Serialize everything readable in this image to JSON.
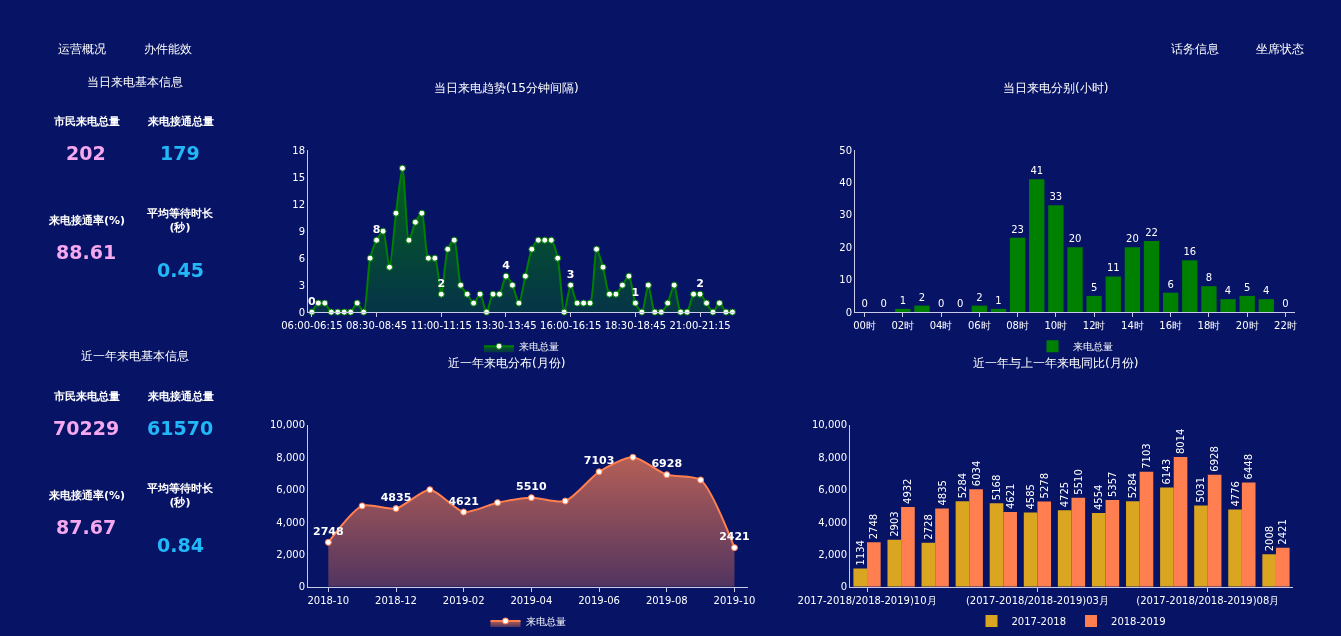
{
  "chart_data": [
    {
      "type": "other",
      "annotations": [
        "运营概况",
        "办件能效",
        "话务信息",
        "坐席状态"
      ]
    },
    {
      "type": "other",
      "title": "当日来电基本信息",
      "annotations": [
        "市民来电总量",
        "202",
        "来电接通总量",
        "179",
        "来电接通率(%)",
        "88.61",
        "平均等待时长(秒)",
        "0.45"
      ]
    },
    {
      "type": "area",
      "title": "当日来电趋势(15分钟间隔)",
      "categories": [
        "06:00-06:15",
        null,
        null,
        null,
        null,
        null,
        null,
        null,
        null,
        null,
        "08:30-08:45",
        null,
        null,
        null,
        null,
        null,
        null,
        null,
        null,
        null,
        "11:00-11:15",
        null,
        null,
        null,
        null,
        null,
        null,
        null,
        null,
        null,
        "13:30-13:45",
        null,
        null,
        null,
        null,
        null,
        null,
        null,
        null,
        null,
        "16:00-16:15",
        null,
        null,
        null,
        null,
        null,
        null,
        null,
        null,
        null,
        "18:30-18:45",
        null,
        null,
        null,
        null,
        null,
        null,
        null,
        null,
        null,
        "21:00-21:15",
        null,
        null,
        null,
        null,
        null
      ],
      "series": [
        {
          "name": "来电总量",
          "color": "#008000",
          "values": [
            0,
            1,
            1,
            0,
            0,
            0,
            0,
            1,
            0,
            6,
            8,
            9,
            5,
            11,
            16,
            8,
            10,
            11,
            6,
            6,
            2,
            7,
            8,
            3,
            2,
            1,
            2,
            0,
            2,
            2,
            4,
            3,
            1,
            4,
            7,
            8,
            8,
            8,
            6,
            0,
            3,
            1,
            1,
            1,
            7,
            5,
            2,
            2,
            3,
            4,
            1,
            0,
            3,
            0,
            0,
            1,
            3,
            0,
            0,
            2,
            2,
            1,
            0,
            1,
            0,
            0
          ],
          "value_labels": [
            "0",
            null,
            null,
            null,
            null,
            null,
            null,
            null,
            null,
            null,
            "8",
            null,
            null,
            null,
            null,
            null,
            null,
            null,
            null,
            null,
            "2",
            null,
            null,
            null,
            null,
            null,
            null,
            null,
            null,
            null,
            "4",
            null,
            null,
            null,
            null,
            null,
            null,
            null,
            null,
            null,
            "3",
            null,
            null,
            null,
            null,
            null,
            null,
            null,
            null,
            null,
            "1",
            null,
            null,
            null,
            null,
            null,
            null,
            null,
            null,
            null,
            "2",
            null,
            null,
            null,
            null,
            null
          ]
        }
      ],
      "ylim": [
        0,
        18
      ],
      "yticks": [
        0,
        3,
        6,
        9,
        12,
        15,
        18
      ],
      "legend": "bottom",
      "marker": "circle"
    },
    {
      "type": "bar",
      "title": "当日来电分别(小时)",
      "categories": [
        "00时",
        null,
        "02时",
        null,
        "04时",
        null,
        "06时",
        null,
        "08时",
        null,
        "10时",
        null,
        "12时",
        null,
        "14时",
        null,
        "16时",
        null,
        "18时",
        null,
        "20时",
        null,
        "22时"
      ],
      "series": [
        {
          "name": "来电总量",
          "color": "#008000",
          "values": [
            0,
            0,
            1,
            2,
            0,
            0,
            2,
            1,
            23,
            41,
            33,
            20,
            5,
            11,
            20,
            22,
            6,
            16,
            8,
            4,
            5,
            4,
            0
          ]
        }
      ],
      "ylim": [
        0,
        50
      ],
      "yticks": [
        0,
        10,
        20,
        30,
        40,
        50
      ],
      "data_labels": true,
      "legend": "bottom"
    },
    {
      "type": "other",
      "title": "近一年来电基本信息",
      "annotations": [
        "市民来电总量",
        "70229",
        "来电接通总量",
        "61570",
        "来电接通率(%)",
        "87.67",
        "平均等待时长(秒)",
        "0.84"
      ]
    },
    {
      "type": "area",
      "title": "近一年来电分布(月份)",
      "categories": [
        "2018-10",
        null,
        "2018-12",
        null,
        "2019-02",
        null,
        "2019-04",
        null,
        "2019-06",
        null,
        "2019-08",
        null,
        "2019-10"
      ],
      "series": [
        {
          "name": "来电总量",
          "color": "#ff7f50",
          "values": [
            2748,
            5000,
            4835,
            6000,
            4621,
            5200,
            5510,
            5300,
            7103,
            8000,
            6928,
            6600,
            2421
          ],
          "value_labels": [
            "2748",
            null,
            "4835",
            null,
            "4621",
            null,
            "5510",
            null,
            "7103",
            null,
            "6928",
            null,
            "2421"
          ]
        }
      ],
      "ylim": [
        0,
        10000
      ],
      "yticks": [
        0,
        {
          "value": 2000,
          "label": "2,000"
        },
        {
          "value": 4000,
          "label": "4,000"
        },
        {
          "value": 6000,
          "label": "6,000"
        },
        {
          "value": 8000,
          "label": "8,000"
        },
        {
          "value": 10000,
          "label": "10,000"
        }
      ],
      "legend": "bottom",
      "marker": "circle"
    },
    {
      "type": "bar",
      "title": "近一年与上一年来电同比(月份)",
      "categories": [
        "2017-2018/2018-2019)10月",
        null,
        null,
        null,
        null,
        "(2017-2018/2018-2019)03月",
        null,
        null,
        null,
        null,
        "(2017-2018/2018-2019)08月",
        null,
        null
      ],
      "series": [
        {
          "name": "2017-2018",
          "color": "#daa520",
          "values": [
            1134,
            2903,
            2728,
            5284,
            5168,
            4585,
            4725,
            4554,
            5284,
            6143,
            5031,
            4776,
            2008
          ]
        },
        {
          "name": "2018-2019",
          "color": "#ff7f50",
          "values": [
            2748,
            4932,
            4835,
            6034,
            4621,
            5278,
            5510,
            5357,
            7103,
            8014,
            6928,
            6448,
            2421
          ]
        }
      ],
      "ylim": [
        0,
        10000
      ],
      "yticks": [
        0,
        {
          "value": 2000,
          "label": "2,000"
        },
        {
          "value": 4000,
          "label": "4,000"
        },
        {
          "value": 6000,
          "label": "6,000"
        },
        {
          "value": 8000,
          "label": "8,000"
        },
        {
          "value": 10000,
          "label": "10,000"
        }
      ],
      "data_labels": true,
      "legend": "bottom"
    }
  ]
}
